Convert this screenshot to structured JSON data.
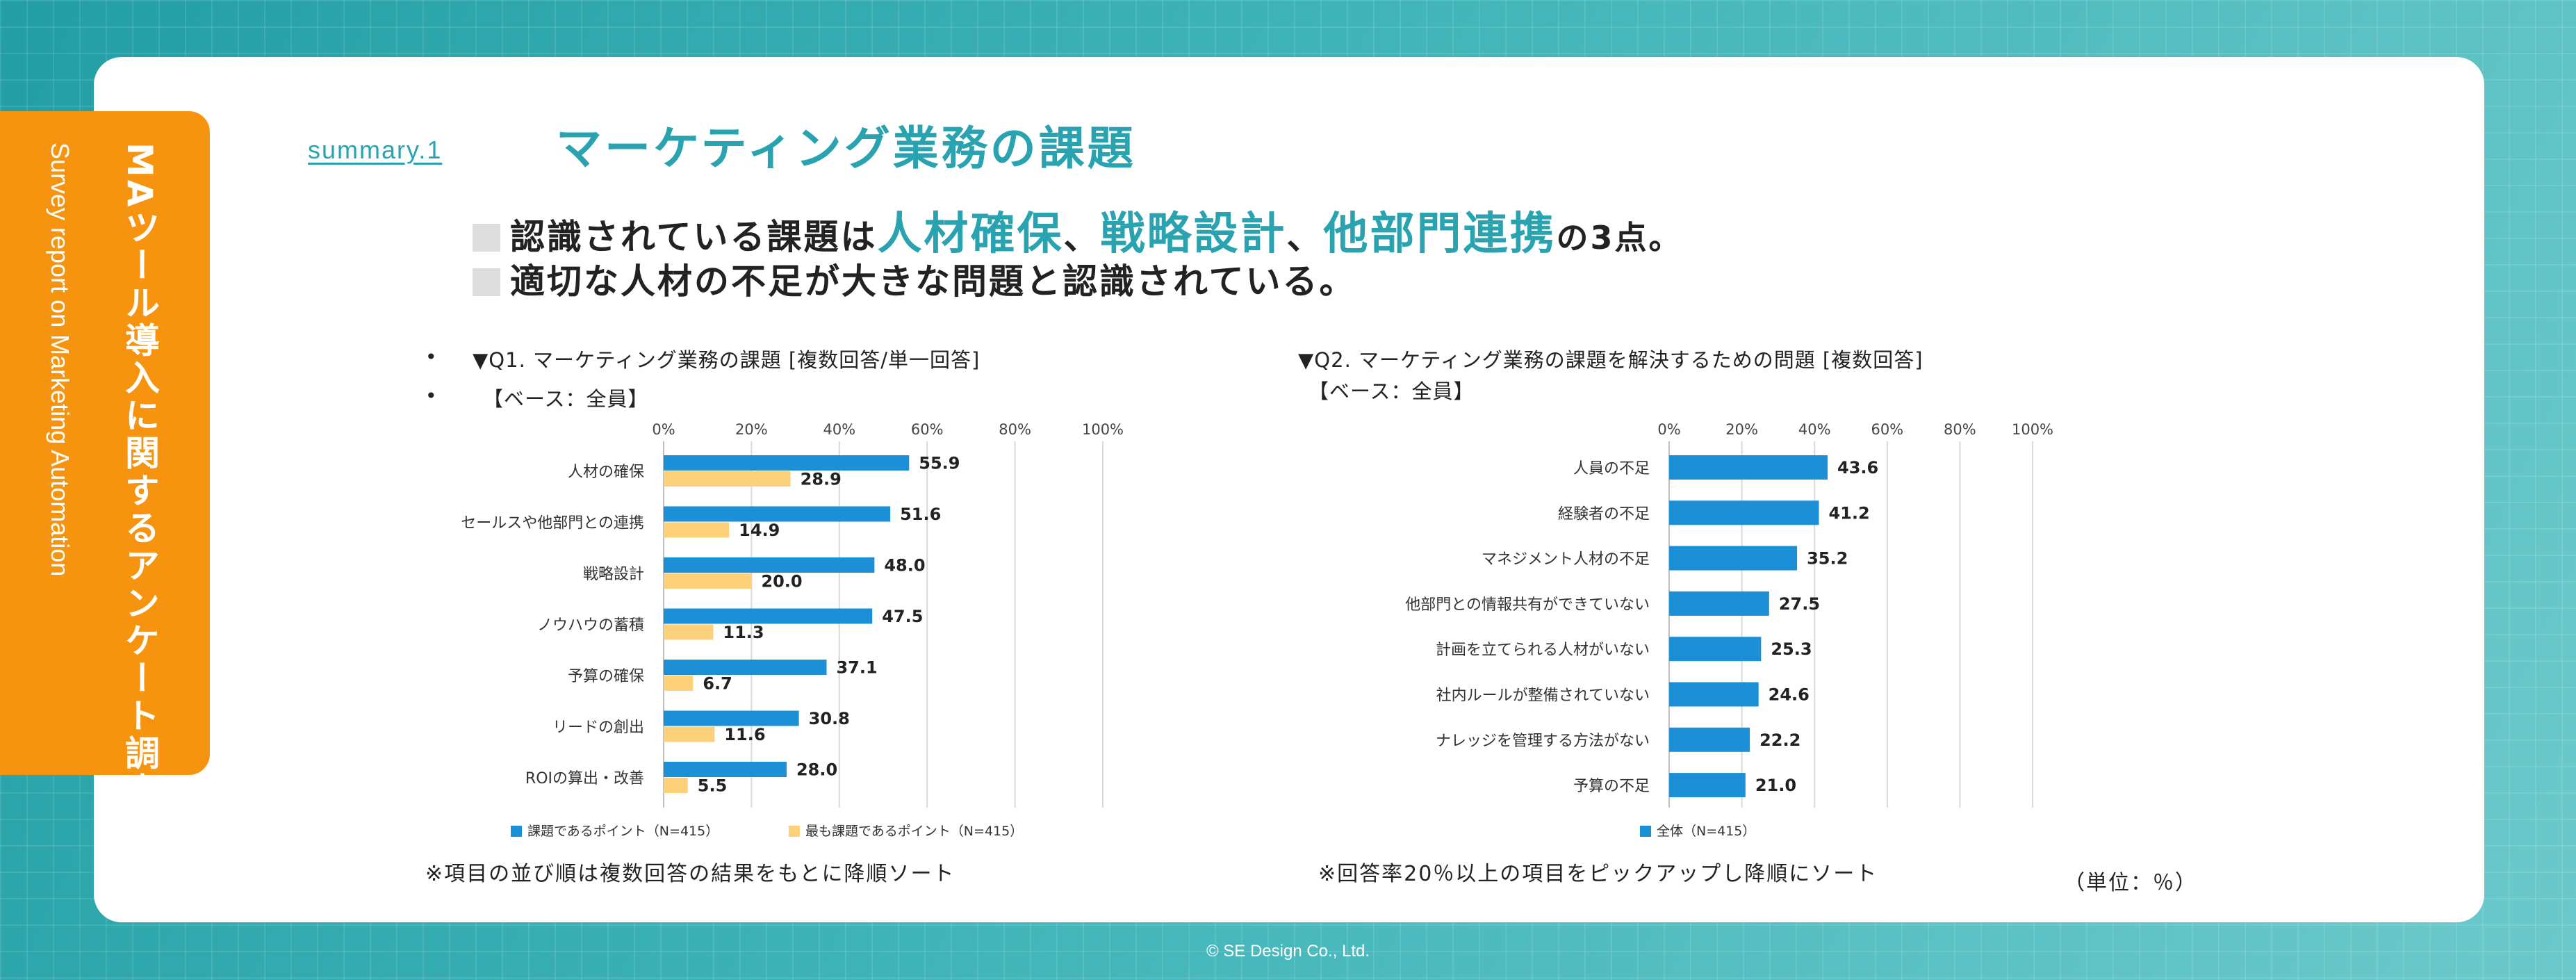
{
  "sidebar": {
    "title_jp": "MAツール導入に関するアンケート調査報告書",
    "title_en": "Survey report on Marketing Automation"
  },
  "header": {
    "summary_label": "summary.1",
    "title": "マーケティング業務の課題"
  },
  "headline": {
    "line1_a": "認識されている課題は",
    "line1_hl1": "人材確保",
    "line1_sep1": "、",
    "line1_hl2": "戦略設計",
    "line1_sep2": "、",
    "line1_hl3": "他部門連携",
    "line1_end": "の3点。",
    "line2": "適切な人材の不足が大きな問題と認識されている。"
  },
  "q1": {
    "bullet": "•",
    "heading": "▼Q1. マーケティング業務の課題 [複数回答/単一回答]",
    "base": "【ベース：全員】"
  },
  "q2": {
    "heading": "▼Q2. マーケティング業務の課題を解決するための問題 [複数回答]",
    "base": "【ベース：全員】"
  },
  "notes": {
    "left": "※項目の並び順は複数回答の結果をもとに降順ソート",
    "right": "※回答率20％以上の項目をピックアップし降順にソート",
    "unit": "（単位：％）"
  },
  "footer": {
    "copyright": "© SE Design Co., Ltd."
  },
  "colors": {
    "teal": "#2aa3b0",
    "orange": "#f7940f",
    "bar_blue": "#1c8fd6",
    "bar_yellow": "#fdd07a"
  },
  "chart_data": [
    {
      "type": "bar",
      "orientation": "horizontal",
      "title": "Q1. マーケティング業務の課題",
      "categories": [
        "人材の確保",
        "セールスや他部門との連携",
        "戦略設計",
        "ノウハウの蓄積",
        "予算の確保",
        "リードの創出",
        "ROIの算出・改善"
      ],
      "series": [
        {
          "name": "課題であるポイント（N=415）",
          "values": [
            55.9,
            51.6,
            48.0,
            47.5,
            37.1,
            30.8,
            28.0
          ]
        },
        {
          "name": "最も課題であるポイント（N=415）",
          "values": [
            28.9,
            14.9,
            20.0,
            11.3,
            6.7,
            11.6,
            5.5
          ]
        }
      ],
      "xlim": [
        0,
        100
      ],
      "ticks": [
        "0%",
        "20%",
        "40%",
        "60%",
        "80%",
        "100%"
      ],
      "legend": "bottom",
      "grid": true
    },
    {
      "type": "bar",
      "orientation": "horizontal",
      "title": "Q2. マーケティング業務の課題を解決するための問題",
      "categories": [
        "人員の不足",
        "経験者の不足",
        "マネジメント人材の不足",
        "他部門との情報共有ができていない",
        "計画を立てられる人材がいない",
        "社内ルールが整備されていない",
        "ナレッジを管理する方法がない",
        "予算の不足"
      ],
      "series": [
        {
          "name": "全体（N=415）",
          "values": [
            43.6,
            41.2,
            35.2,
            27.5,
            25.3,
            24.6,
            22.2,
            21.0
          ]
        }
      ],
      "xlim": [
        0,
        100
      ],
      "ticks": [
        "0%",
        "20%",
        "40%",
        "60%",
        "80%",
        "100%"
      ],
      "legend": "bottom",
      "grid": true
    }
  ]
}
